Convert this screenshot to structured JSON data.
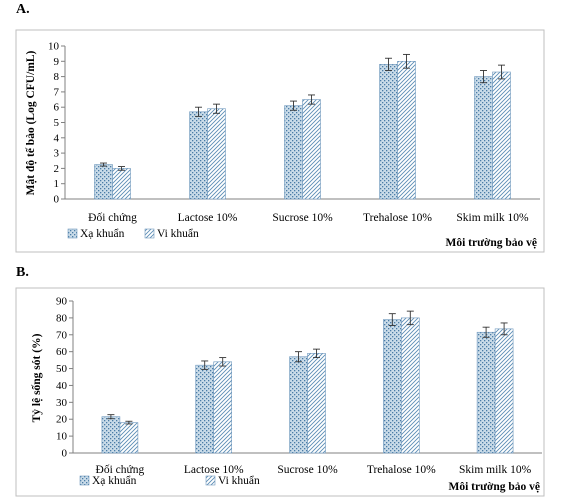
{
  "panels": [
    {
      "letter": "A.",
      "chart_data": {
        "type": "bar",
        "categories": [
          "Đối chứng",
          "Lactose 10%",
          "Sucrose 10%",
          "Trehalose 10%",
          "Skim milk 10%"
        ],
        "series": [
          {
            "name": "Xạ khuẩn",
            "values": [
              2.25,
              5.7,
              6.1,
              8.8,
              8.0
            ],
            "errors": [
              0.1,
              0.3,
              0.3,
              0.4,
              0.4
            ],
            "pattern": "dots"
          },
          {
            "name": "Vi khuẩn",
            "values": [
              2.0,
              5.9,
              6.5,
              9.0,
              8.3
            ],
            "errors": [
              0.12,
              0.3,
              0.3,
              0.45,
              0.45
            ],
            "pattern": "hatch"
          }
        ],
        "title": "",
        "xlabel": "Môi trường bảo vệ",
        "ylabel": "Mật độ tế bào (Log CFU/mL)",
        "ylim": [
          0,
          10
        ],
        "yticks": [
          0,
          1,
          2,
          3,
          4,
          5,
          6,
          7,
          8,
          9,
          10
        ],
        "grid": false,
        "legend": "bottom-left"
      }
    },
    {
      "letter": "B.",
      "chart_data": {
        "type": "bar",
        "categories": [
          "Đối chứng",
          "Lactose 10%",
          "Sucrose 10%",
          "Trehalose 10%",
          "Skim milk 10%"
        ],
        "series": [
          {
            "name": "Xạ khuẩn",
            "values": [
              21.5,
              52,
              57,
              79,
              71.5
            ],
            "errors": [
              1.2,
              2.5,
              3,
              3.5,
              3
            ],
            "pattern": "dots"
          },
          {
            "name": "Vi khuẩn",
            "values": [
              18,
              54,
              59,
              80,
              73.5
            ],
            "errors": [
              0.8,
              2.5,
              2.5,
              4,
              3.5
            ],
            "pattern": "hatch"
          }
        ],
        "title": "",
        "xlabel": "Môi trường bảo vệ",
        "ylabel": "Tỷ lệ sống sót (%)",
        "ylim": [
          0,
          90
        ],
        "yticks": [
          0,
          10,
          20,
          30,
          40,
          50,
          60,
          70,
          80,
          90
        ],
        "grid": false,
        "legend": "bottom-left"
      }
    }
  ],
  "colors": {
    "dots_fill": "#c9dbe8",
    "dots_ink": "#4a7ba6",
    "hatch_ink": "#5b8cb5",
    "bar_border": "#6f98bd",
    "axis": "#808080",
    "frame": "#bfbfbf"
  }
}
